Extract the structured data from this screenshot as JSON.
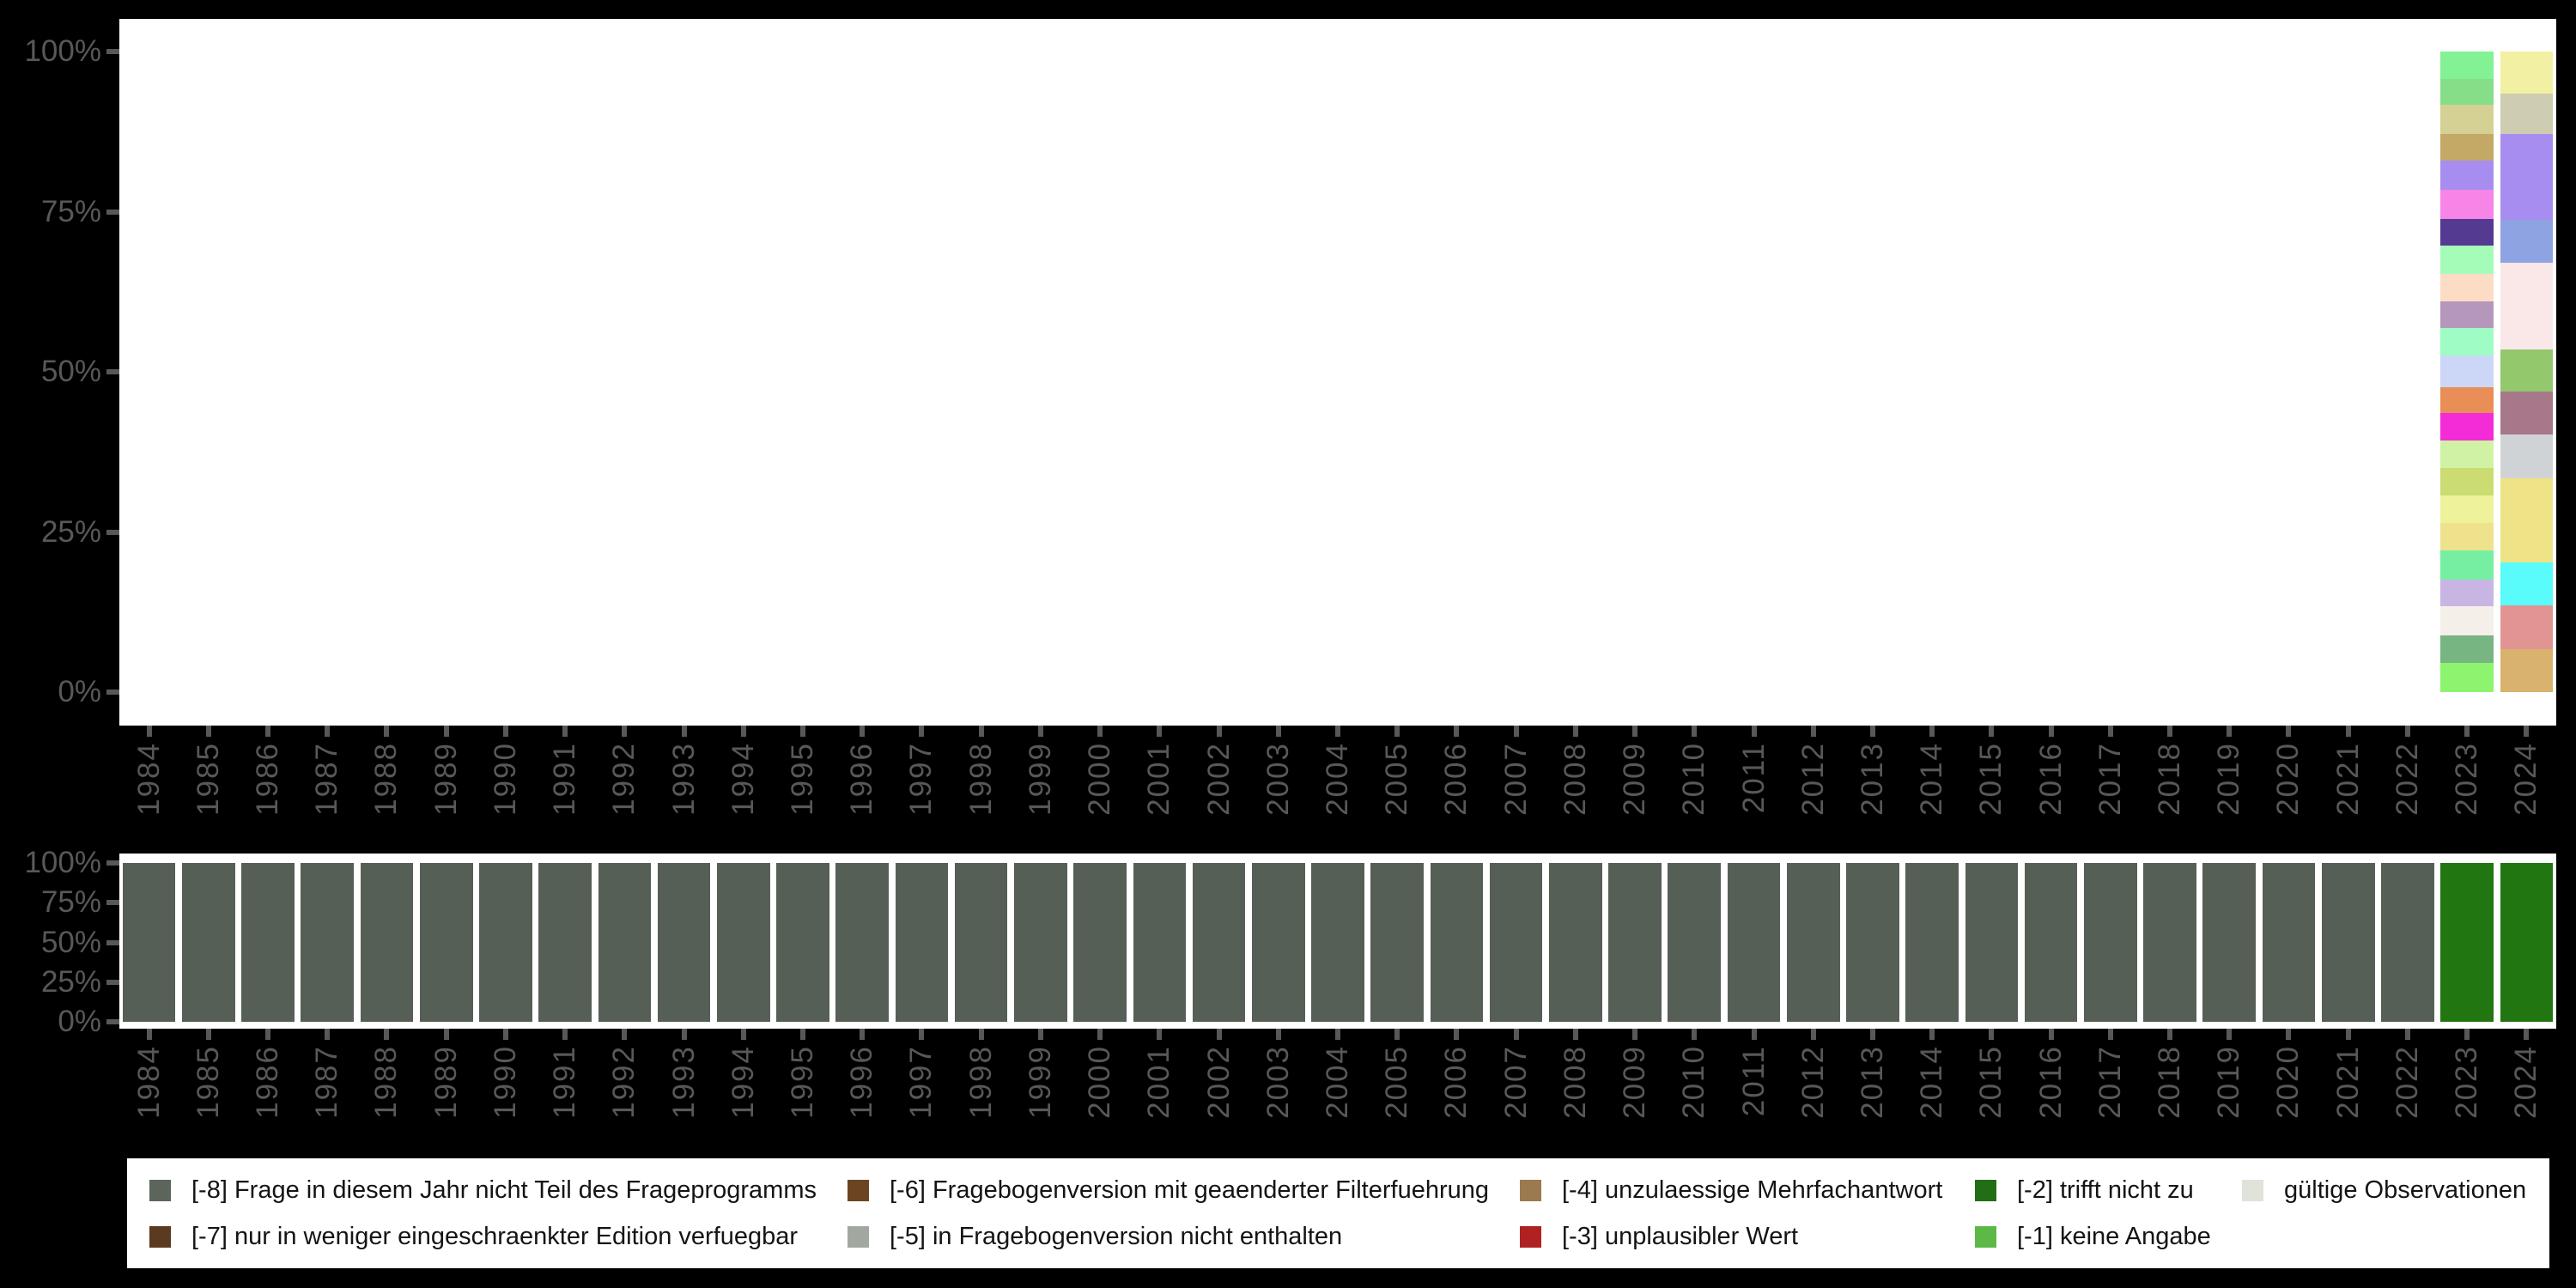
{
  "years": [
    "1984",
    "1985",
    "1986",
    "1987",
    "1988",
    "1989",
    "1990",
    "1991",
    "1992",
    "1993",
    "1994",
    "1995",
    "1996",
    "1997",
    "1998",
    "1999",
    "2000",
    "2001",
    "2002",
    "2003",
    "2004",
    "2005",
    "2006",
    "2007",
    "2008",
    "2009",
    "2010",
    "2011",
    "2012",
    "2013",
    "2014",
    "2015",
    "2016",
    "2017",
    "2018",
    "2019",
    "2020",
    "2021",
    "2022",
    "2023",
    "2024"
  ],
  "y_axis_ticks": [
    "100%",
    "75%",
    "50%",
    "25%",
    "0%"
  ],
  "colors": {
    "background": "#000000",
    "plot_background": "#ffffff",
    "axis_text": "#585858",
    "missing_default_bar": "#565f56",
    "missing_green_bar": "#217612"
  },
  "chart_data": [
    {
      "type": "bar",
      "variant": "stacked-100-percent",
      "title": "",
      "xlabel": "",
      "ylabel": "",
      "ylim": [
        0,
        100
      ],
      "ytick_labels": [
        "100%",
        "75%",
        "50%",
        "25%",
        "0%"
      ],
      "grid": false,
      "categories_note": "years 1984-2022 show no bar; only 2023 and 2024 have stacked category distributions",
      "bars": {
        "2023": {
          "segments_pct": [
            4.3,
            4.0,
            4.6,
            4.2,
            4.5,
            4.6,
            4.2,
            4.4,
            4.3,
            4.2,
            4.2,
            5.0,
            4.0,
            4.3,
            4.4,
            4.3,
            4.2,
            4.3,
            4.6,
            4.2,
            4.5,
            4.3,
            4.6
          ],
          "segment_colors": [
            "#82f295",
            "#86de88",
            "#d5d093",
            "#c4a865",
            "#a88df0",
            "#f785e8",
            "#543a91",
            "#a5fbb8",
            "#fcdcc5",
            "#b597bc",
            "#9efcc4",
            "#ccd6f7",
            "#e88e56",
            "#f32cd7",
            "#d0f2a5",
            "#cadc72",
            "#eef29b",
            "#efe28d",
            "#77efa2",
            "#c9b5e4",
            "#f4f0e9",
            "#77b583",
            "#8cf46e"
          ]
        },
        "2024": {
          "segments_pct": [
            6.5,
            6.4,
            13.3,
            6.7,
            13.6,
            6.5,
            6.7,
            6.8,
            13.2,
            6.7,
            6.8,
            6.7
          ],
          "segment_colors": [
            "#f2f0a2",
            "#cecdb1",
            "#a88df0",
            "#8ea4e2",
            "#fae7e8",
            "#93c96c",
            "#a7778a",
            "#cfd3d6",
            "#efe388",
            "#59fbfb",
            "#e29492",
            "#d9b26e"
          ]
        }
      }
    },
    {
      "type": "bar",
      "variant": "100-percent",
      "title": "",
      "xlabel": "",
      "ylabel": "",
      "ylim": [
        0,
        100
      ],
      "ytick_labels": [
        "100%",
        "75%",
        "50%",
        "25%",
        "0%"
      ],
      "grid": false,
      "values": [
        100,
        100,
        100,
        100,
        100,
        100,
        100,
        100,
        100,
        100,
        100,
        100,
        100,
        100,
        100,
        100,
        100,
        100,
        100,
        100,
        100,
        100,
        100,
        100,
        100,
        100,
        100,
        100,
        100,
        100,
        100,
        100,
        100,
        100,
        100,
        100,
        100,
        100,
        100,
        100,
        100
      ],
      "bar_color_by_year": {
        "2023": "#217612",
        "2024": "#217612"
      },
      "bar_color_default": "#565f56"
    }
  ],
  "legend": {
    "items": [
      {
        "label": "[-8] Frage in diesem Jahr nicht Teil des Frageprogramms",
        "color": "#5c655c"
      },
      {
        "label": "[-7] nur in weniger eingeschraenkter Edition verfuegbar",
        "color": "#5b3a20"
      },
      {
        "label": "[-6] Fragebogenversion mit geaenderter Filterfuehrung",
        "color": "#6b4423"
      },
      {
        "label": "[-5] in Fragebogenversion nicht enthalten",
        "color": "#a2a8a0"
      },
      {
        "label": "[-4] unzulaessige Mehrfachantwort",
        "color": "#9a7a4e"
      },
      {
        "label": "[-3] unplausibler Wert",
        "color": "#b02124"
      },
      {
        "label": "[-2] trifft nicht zu",
        "color": "#226e15"
      },
      {
        "label": "[-1] keine Angabe",
        "color": "#5cb948"
      },
      {
        "label": "gültige Observationen",
        "color": "#dfe3da"
      }
    ]
  }
}
